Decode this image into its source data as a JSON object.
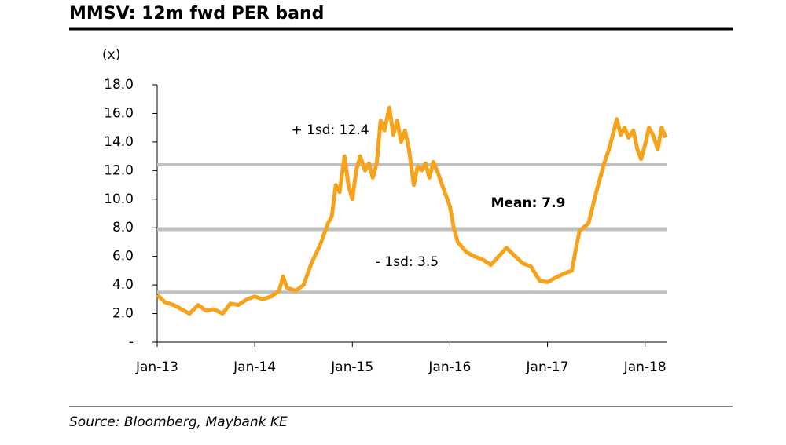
{
  "chart_data": {
    "type": "line",
    "title": "MMSV: 12m fwd PER band",
    "y_label": "(x)",
    "source": "Source: Bloomberg, Maybank KE",
    "x": [
      2013.0,
      2013.08,
      2013.17,
      2013.25,
      2013.33,
      2013.42,
      2013.5,
      2013.58,
      2013.67,
      2013.75,
      2013.83,
      2013.92,
      2014.0,
      2014.08,
      2014.17,
      2014.25,
      2014.29,
      2014.33,
      2014.42,
      2014.5,
      2014.58,
      2014.67,
      2014.75,
      2014.79,
      2014.83,
      2014.87,
      2014.92,
      2014.96,
      2015.0,
      2015.04,
      2015.08,
      2015.13,
      2015.17,
      2015.21,
      2015.25,
      2015.29,
      2015.33,
      2015.38,
      2015.42,
      2015.46,
      2015.5,
      2015.54,
      2015.58,
      2015.63,
      2015.67,
      2015.71,
      2015.75,
      2015.79,
      2015.83,
      2015.88,
      2015.92,
      2016.0,
      2016.04,
      2016.08,
      2016.17,
      2016.25,
      2016.33,
      2016.42,
      2016.5,
      2016.58,
      2016.67,
      2016.75,
      2016.83,
      2016.92,
      2017.0,
      2017.08,
      2017.17,
      2017.25,
      2017.29,
      2017.33,
      2017.42,
      2017.5,
      2017.58,
      2017.63,
      2017.67,
      2017.71,
      2017.75,
      2017.79,
      2017.83,
      2017.88,
      2017.92,
      2017.96,
      2018.0,
      2018.04,
      2018.08,
      2018.13,
      2018.17,
      2018.21
    ],
    "series": [
      {
        "color": "#f7a21b",
        "values": [
          3.3,
          2.8,
          2.6,
          2.3,
          2.0,
          2.6,
          2.2,
          2.3,
          2.0,
          2.7,
          2.6,
          3.0,
          3.2,
          3.0,
          3.2,
          3.6,
          4.6,
          3.8,
          3.6,
          4.0,
          5.5,
          6.8,
          8.3,
          8.8,
          11.0,
          10.5,
          13.0,
          11.0,
          10.0,
          12.0,
          13.0,
          12.0,
          12.5,
          11.5,
          12.5,
          15.5,
          14.8,
          16.4,
          14.5,
          15.5,
          14.0,
          14.8,
          13.5,
          11.0,
          12.3,
          12.0,
          12.5,
          11.5,
          12.6,
          11.8,
          11.0,
          9.5,
          8.0,
          7.0,
          6.3,
          6.0,
          5.8,
          5.4,
          6.0,
          6.6,
          6.0,
          5.5,
          5.3,
          4.3,
          4.2,
          4.5,
          4.8,
          5.0,
          6.5,
          7.8,
          8.3,
          10.5,
          12.5,
          13.5,
          14.5,
          15.6,
          14.5,
          15.0,
          14.3,
          14.8,
          13.5,
          12.8,
          13.8,
          15.0,
          14.5,
          13.5,
          15.0,
          14.3
        ]
      }
    ],
    "bands": [
      {
        "label": "+ 1sd: 12.4",
        "value": 12.4,
        "color": "#c0c0c0"
      },
      {
        "label": "Mean: 7.9",
        "value": 7.9,
        "color": "#c0c0c0"
      },
      {
        "label": "- 1sd: 3.5",
        "value": 3.5,
        "color": "#c0c0c0"
      }
    ],
    "xlim": [
      2013.0,
      2018.22
    ],
    "xticks": [
      {
        "value": 2013,
        "label": "Jan-13"
      },
      {
        "value": 2014,
        "label": "Jan-14"
      },
      {
        "value": 2015,
        "label": "Jan-15"
      },
      {
        "value": 2016,
        "label": "Jan-16"
      },
      {
        "value": 2017,
        "label": "Jan-17"
      },
      {
        "value": 2018,
        "label": "Jan-18"
      }
    ],
    "ylim": [
      0,
      18
    ],
    "yticks": [
      {
        "value": 0,
        "label": "-"
      },
      {
        "value": 2,
        "label": "2.0"
      },
      {
        "value": 4,
        "label": "4.0"
      },
      {
        "value": 6,
        "label": "6.0"
      },
      {
        "value": 8,
        "label": "8.0"
      },
      {
        "value": 10,
        "label": "10.0"
      },
      {
        "value": 12,
        "label": "12.0"
      },
      {
        "value": 14,
        "label": "14.0"
      },
      {
        "value": 16,
        "label": "16.0"
      },
      {
        "value": 18,
        "label": "18.0"
      }
    ]
  }
}
